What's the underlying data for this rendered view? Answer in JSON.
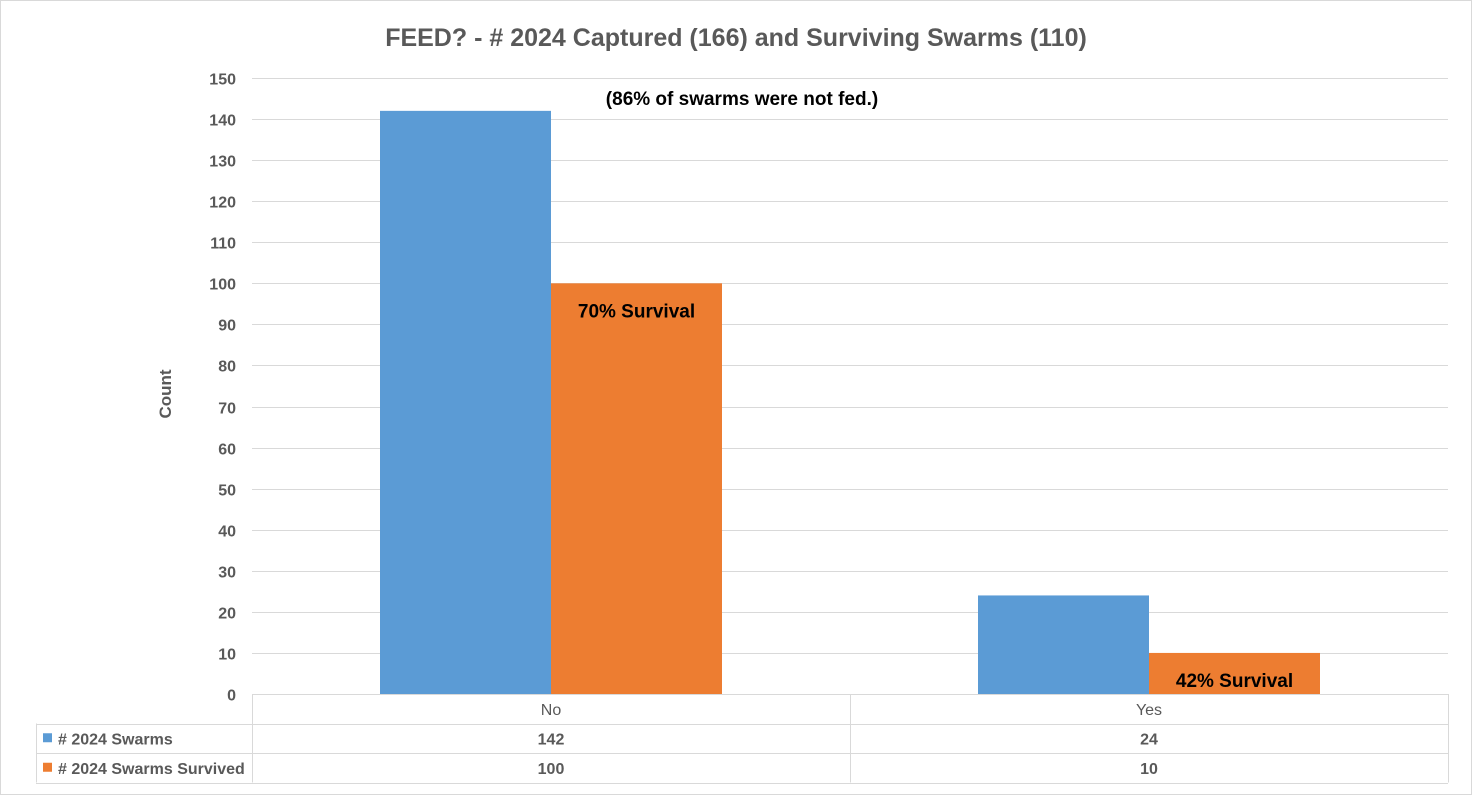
{
  "chart_data": {
    "type": "bar",
    "title": "FEED? - # 2024 Captured (166) and Surviving Swarms (110)",
    "subtitle": "(86% of swarms were not fed.)",
    "xlabel": "",
    "ylabel": "Count",
    "categories": [
      "No",
      "Yes"
    ],
    "ylim": [
      0,
      150
    ],
    "ytick_step": 10,
    "grid": true,
    "legend": "data-table",
    "series": [
      {
        "name": "# 2024 Swarms",
        "color": "#5b9bd5",
        "values": [
          142,
          24
        ]
      },
      {
        "name": "# 2024 Swarms Survived",
        "color": "#ed7d31",
        "values": [
          100,
          10
        ]
      }
    ],
    "annotations": [
      {
        "series": 1,
        "category": 0,
        "text": "70% Survival"
      },
      {
        "series": 1,
        "category": 1,
        "text": "42% Survival"
      }
    ]
  }
}
